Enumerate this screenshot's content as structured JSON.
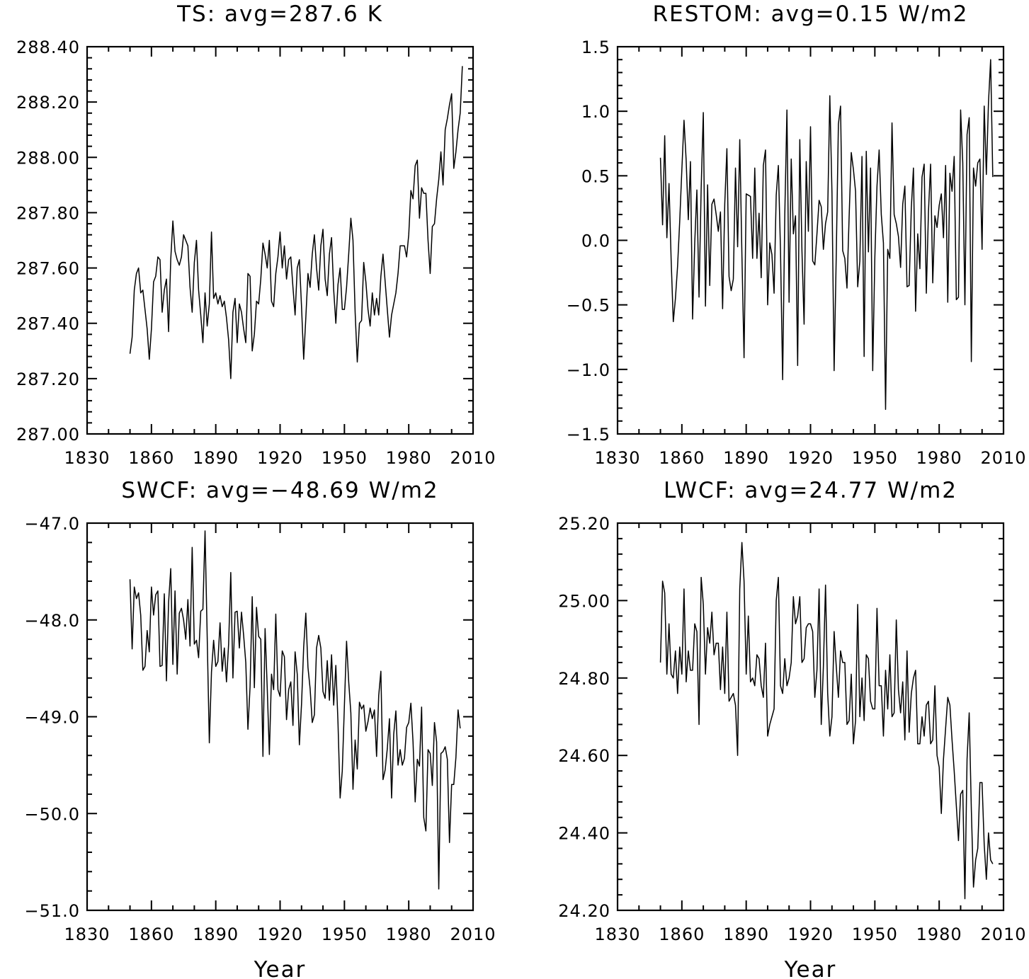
{
  "chart_data": [
    {
      "type": "line",
      "title": "TS: avg=287.6 K",
      "xlabel": "",
      "ylabel": "",
      "xlim": [
        1830,
        2010
      ],
      "ylim": [
        287.0,
        288.4
      ],
      "xticks": [
        1830,
        1860,
        1890,
        1920,
        1950,
        1980,
        2010
      ],
      "xtick_labels": [
        "1830",
        "1860",
        "1890",
        "1920",
        "1950",
        "1980",
        "2010"
      ],
      "yticks": [
        287.0,
        287.2,
        287.4,
        287.6,
        287.8,
        288.0,
        288.2,
        288.4
      ],
      "ytick_labels": [
        "287.00",
        "287.20",
        "287.40",
        "287.60",
        "287.80",
        "288.00",
        "288.20",
        "288.40"
      ],
      "x_start": 1850,
      "series": [
        {
          "values": [
            287.29,
            287.35,
            287.52,
            287.58,
            287.6,
            287.51,
            287.52,
            287.45,
            287.38,
            287.27,
            287.38,
            287.55,
            287.57,
            287.64,
            287.63,
            287.44,
            287.52,
            287.56,
            287.37,
            287.63,
            287.77,
            287.66,
            287.63,
            287.61,
            287.64,
            287.72,
            287.7,
            287.68,
            287.53,
            287.44,
            287.62,
            287.7,
            287.52,
            287.43,
            287.33,
            287.51,
            287.39,
            287.47,
            287.73,
            287.49,
            287.51,
            287.47,
            287.5,
            287.46,
            287.48,
            287.42,
            287.34,
            287.2,
            287.44,
            287.49,
            287.33,
            287.47,
            287.44,
            287.38,
            287.33,
            287.58,
            287.57,
            287.3,
            287.36,
            287.48,
            287.47,
            287.56,
            287.69,
            287.65,
            287.6,
            287.7,
            287.48,
            287.46,
            287.58,
            287.64,
            287.73,
            287.6,
            287.68,
            287.56,
            287.63,
            287.64,
            287.53,
            287.43,
            287.6,
            287.63,
            287.46,
            287.27,
            287.42,
            287.58,
            287.53,
            287.65,
            287.72,
            287.6,
            287.52,
            287.68,
            287.74,
            287.56,
            287.5,
            287.65,
            287.71,
            287.52,
            287.4,
            287.54,
            287.6,
            287.45,
            287.45,
            287.53,
            287.65,
            287.78,
            287.7,
            287.44,
            287.26,
            287.4,
            287.41,
            287.62,
            287.55,
            287.45,
            287.39,
            287.51,
            287.43,
            287.49,
            287.43,
            287.57,
            287.65,
            287.55,
            287.45,
            287.35,
            287.43,
            287.47,
            287.51,
            287.58,
            287.68,
            287.68,
            287.68,
            287.64,
            287.72,
            287.88,
            287.85,
            287.97,
            287.99,
            287.78,
            287.89,
            287.87,
            287.87,
            287.7,
            287.58,
            287.75,
            287.76,
            287.85,
            287.92,
            288.02,
            287.9,
            288.1,
            288.14,
            288.19,
            288.23,
            287.96,
            288.02,
            288.1,
            288.16,
            288.33
          ]
        }
      ]
    },
    {
      "type": "line",
      "title": "RESTOM: avg=0.15 W/m2",
      "xlabel": "",
      "ylabel": "",
      "xlim": [
        1830,
        2010
      ],
      "ylim": [
        -1.5,
        1.5
      ],
      "xticks": [
        1830,
        1860,
        1890,
        1920,
        1950,
        1980,
        2010
      ],
      "xtick_labels": [
        "1830",
        "1860",
        "1890",
        "1920",
        "1950",
        "1980",
        "2010"
      ],
      "yticks": [
        -1.5,
        -1.0,
        -0.5,
        0.0,
        0.5,
        1.0,
        1.5
      ],
      "ytick_labels": [
        "−1.5",
        "−1.0",
        "−0.5",
        "0.0",
        "0.5",
        "1.0",
        "1.5"
      ],
      "x_start": 1850,
      "series": [
        {
          "values": [
            0.64,
            0.12,
            0.81,
            0.02,
            0.44,
            -0.15,
            -0.63,
            -0.45,
            -0.2,
            0.15,
            0.55,
            0.93,
            0.62,
            0.16,
            0.61,
            -0.61,
            -0.02,
            0.39,
            -0.44,
            0.4,
            0.99,
            -0.51,
            0.43,
            -0.35,
            0.28,
            0.32,
            0.2,
            0.07,
            0.22,
            -0.53,
            0.28,
            0.71,
            -0.28,
            -0.39,
            -0.3,
            0.56,
            -0.05,
            0.78,
            -0.11,
            -0.91,
            0.36,
            0.35,
            0.34,
            -0.14,
            0.56,
            -0.14,
            0.21,
            -0.29,
            0.58,
            0.7,
            -0.5,
            -0.02,
            -0.11,
            -0.41,
            0.35,
            0.58,
            -0.08,
            -1.08,
            0.2,
            1.01,
            -0.48,
            0.63,
            0.05,
            0.19,
            -0.97,
            0.78,
            -0.08,
            -0.65,
            0.61,
            0.07,
            0.88,
            -0.16,
            -0.19,
            0.05,
            0.31,
            0.26,
            -0.07,
            0.13,
            0.22,
            1.12,
            0.37,
            -1.01,
            -0.12,
            0.9,
            1.04,
            -0.08,
            -0.14,
            -0.37,
            0.18,
            0.68,
            0.55,
            0.38,
            -0.36,
            -0.16,
            0.65,
            -0.9,
            0.69,
            -0.09,
            0.56,
            -1.01,
            -0.13,
            0.42,
            0.7,
            0.2,
            -0.02,
            -1.31,
            -0.07,
            -0.14,
            0.91,
            0.2,
            0.13,
            0.03,
            -0.21,
            0.28,
            0.42,
            -0.36,
            -0.35,
            0.25,
            0.56,
            -0.55,
            0.05,
            -0.22,
            0.49,
            0.59,
            -0.41,
            0.22,
            0.59,
            -0.33,
            0.19,
            0.1,
            0.27,
            0.36,
            0.02,
            0.58,
            -0.48,
            0.52,
            0.38,
            0.65,
            -0.46,
            -0.44,
            1.01,
            0.6,
            -0.5,
            0.82,
            0.95,
            -0.94,
            0.56,
            0.42,
            0.6,
            0.63,
            -0.07,
            1.04,
            0.51,
            1.07,
            1.4,
            0.49
          ]
        }
      ]
    },
    {
      "type": "line",
      "title": "SWCF: avg=−48.69 W/m2",
      "xlabel": "Year",
      "ylabel": "",
      "xlim": [
        1830,
        2010
      ],
      "ylim": [
        -51.0,
        -47.0
      ],
      "xticks": [
        1830,
        1860,
        1890,
        1920,
        1950,
        1980,
        2010
      ],
      "xtick_labels": [
        "1830",
        "1860",
        "1890",
        "1920",
        "1950",
        "1980",
        "2010"
      ],
      "yticks": [
        -51.0,
        -50.0,
        -49.0,
        -48.0,
        -47.0
      ],
      "ytick_labels": [
        "−51.0",
        "−50.0",
        "−49.0",
        "−48.0",
        "−47.0"
      ],
      "x_start": 1850,
      "series": [
        {
          "values": [
            -47.58,
            -48.3,
            -47.66,
            -47.78,
            -47.72,
            -47.95,
            -48.52,
            -48.48,
            -48.11,
            -48.33,
            -47.66,
            -47.95,
            -47.74,
            -47.7,
            -48.48,
            -48.47,
            -47.73,
            -48.63,
            -47.82,
            -47.47,
            -48.46,
            -47.7,
            -48.56,
            -47.93,
            -47.88,
            -48.0,
            -48.2,
            -47.79,
            -48.27,
            -47.25,
            -48.25,
            -48.21,
            -48.39,
            -47.91,
            -47.89,
            -47.08,
            -48.17,
            -49.27,
            -48.54,
            -48.21,
            -48.48,
            -48.43,
            -48.03,
            -48.53,
            -48.29,
            -48.64,
            -48.25,
            -47.51,
            -48.6,
            -47.92,
            -47.91,
            -48.29,
            -47.92,
            -48.16,
            -48.44,
            -49.13,
            -48.69,
            -47.76,
            -48.7,
            -47.87,
            -48.17,
            -48.2,
            -49.41,
            -48.09,
            -48.7,
            -49.39,
            -48.56,
            -48.72,
            -47.94,
            -48.72,
            -48.79,
            -48.32,
            -48.38,
            -49.03,
            -48.72,
            -48.64,
            -49.09,
            -48.33,
            -48.56,
            -49.29,
            -48.87,
            -48.28,
            -47.93,
            -48.49,
            -48.71,
            -49.06,
            -48.98,
            -48.29,
            -48.16,
            -48.29,
            -48.74,
            -48.81,
            -48.42,
            -48.83,
            -48.36,
            -48.88,
            -48.47,
            -49.06,
            -49.84,
            -49.56,
            -48.88,
            -48.22,
            -48.64,
            -48.96,
            -49.75,
            -49.24,
            -49.54,
            -48.85,
            -48.92,
            -48.88,
            -49.15,
            -49.05,
            -48.91,
            -49.02,
            -48.93,
            -49.41,
            -48.78,
            -48.53,
            -49.65,
            -49.55,
            -49.33,
            -49.02,
            -49.84,
            -49.18,
            -48.94,
            -49.5,
            -49.34,
            -49.5,
            -49.43,
            -49.11,
            -49.06,
            -48.86,
            -49.26,
            -49.88,
            -49.44,
            -49.51,
            -48.9,
            -50.04,
            -50.18,
            -49.34,
            -49.38,
            -49.71,
            -49.06,
            -49.26,
            -50.78,
            -49.38,
            -49.36,
            -49.31,
            -49.44,
            -50.3,
            -49.7,
            -49.7,
            -49.42,
            -48.93,
            -49.12
          ]
        }
      ]
    },
    {
      "type": "line",
      "title": "LWCF: avg=24.77 W/m2",
      "xlabel": "Year",
      "ylabel": "",
      "xlim": [
        1830,
        2010
      ],
      "ylim": [
        24.2,
        25.2
      ],
      "xticks": [
        1830,
        1860,
        1890,
        1920,
        1950,
        1980,
        2010
      ],
      "xtick_labels": [
        "1830",
        "1860",
        "1890",
        "1920",
        "1950",
        "1980",
        "2010"
      ],
      "yticks": [
        24.2,
        24.4,
        24.6,
        24.8,
        25.0,
        25.2
      ],
      "ytick_labels": [
        "24.20",
        "24.40",
        "24.60",
        "24.80",
        "25.00",
        "25.20"
      ],
      "x_start": 1850,
      "series": [
        {
          "values": [
            24.84,
            25.05,
            25.02,
            24.81,
            24.94,
            24.81,
            24.8,
            24.87,
            24.76,
            24.88,
            24.81,
            25.03,
            24.79,
            24.87,
            24.82,
            24.82,
            24.94,
            24.92,
            24.68,
            25.06,
            24.99,
            24.81,
            24.93,
            24.89,
            24.97,
            24.86,
            24.89,
            24.89,
            24.77,
            24.88,
            24.76,
            24.97,
            24.74,
            24.75,
            24.76,
            24.73,
            24.6,
            25.03,
            25.15,
            25.05,
            24.81,
            24.96,
            24.79,
            24.8,
            24.78,
            24.86,
            24.85,
            24.78,
            24.75,
            24.89,
            24.65,
            24.68,
            24.7,
            24.72,
            25.0,
            25.06,
            24.78,
            24.76,
            24.85,
            24.78,
            24.8,
            24.84,
            25.01,
            24.94,
            24.96,
            25.01,
            24.84,
            24.85,
            24.93,
            24.94,
            24.94,
            24.92,
            24.75,
            24.82,
            25.03,
            24.68,
            24.83,
            25.04,
            24.76,
            24.65,
            24.7,
            24.92,
            24.83,
            24.75,
            24.87,
            24.84,
            24.84,
            24.68,
            24.69,
            24.81,
            24.63,
            24.69,
            24.99,
            24.7,
            24.8,
            24.69,
            24.86,
            24.85,
            24.74,
            24.72,
            24.72,
            24.98,
            24.78,
            24.78,
            24.65,
            24.82,
            24.72,
            24.86,
            24.7,
            24.71,
            24.95,
            24.77,
            24.71,
            24.79,
            24.64,
            24.87,
            24.66,
            24.76,
            24.8,
            24.82,
            24.63,
            24.63,
            24.7,
            24.65,
            24.73,
            24.74,
            24.63,
            24.64,
            24.78,
            24.6,
            24.57,
            24.45,
            24.59,
            24.67,
            24.75,
            24.73,
            24.64,
            24.56,
            24.47,
            24.38,
            24.5,
            24.51,
            24.23,
            24.59,
            24.71,
            24.46,
            24.26,
            24.33,
            24.36,
            24.53,
            24.53,
            24.37,
            24.28,
            24.4,
            24.33,
            24.32
          ]
        }
      ]
    }
  ]
}
